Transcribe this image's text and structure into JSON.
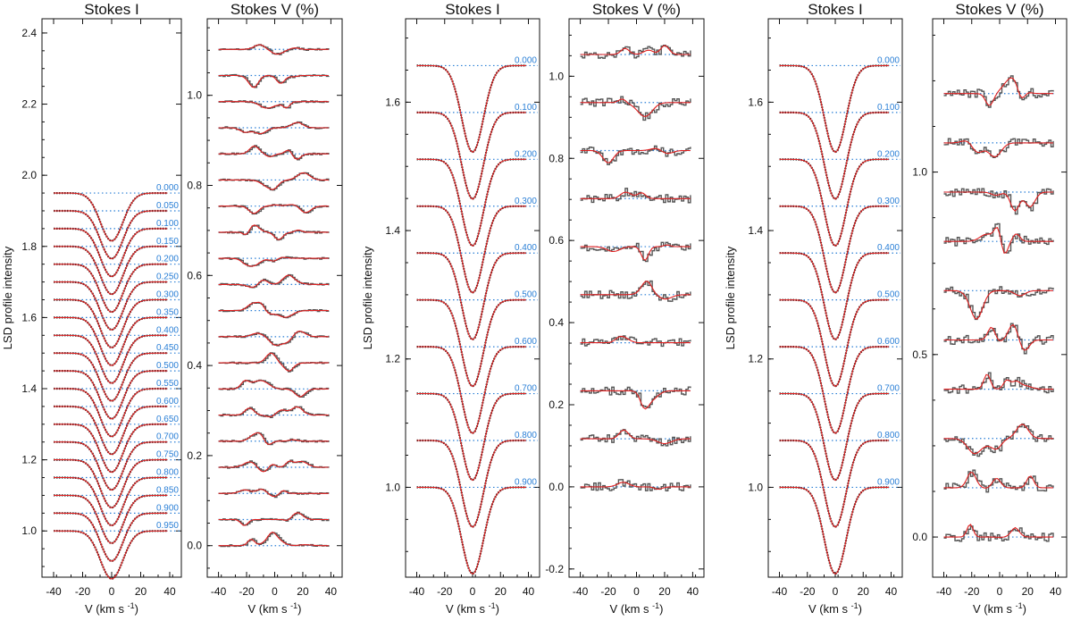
{
  "colors": {
    "observed": "#555555",
    "model": "#e02020",
    "reference": "#2a7fd6",
    "axis": "#111111"
  },
  "chart_data": [
    {
      "type": "line",
      "group": "dataset-1",
      "panels": [
        {
          "kind": "stokes_i",
          "title": "Stokes I",
          "ylabel": "LSD profile intensity",
          "xlabel": "V (km s",
          "xlabel_sup": "-1",
          "xlabel_end": ")",
          "xlim": [
            -48,
            48
          ],
          "ylim": [
            0.87,
            2.44
          ],
          "xticks": [
            -40,
            -20,
            0,
            20,
            40
          ],
          "yticks": [
            1.0,
            1.2,
            1.4,
            1.6,
            1.8,
            2.0,
            2.2,
            2.4
          ],
          "ytick_labels": [
            "1.0",
            "1.2",
            "1.4",
            "1.6",
            "1.8",
            "2.0",
            "2.2",
            "2.4"
          ],
          "offset_step": 0.05,
          "line_depth": 0.135,
          "line_width_kms": 11,
          "phases": [
            "0.000",
            "0.050",
            "0.100",
            "0.150",
            "0.200",
            "0.250",
            "0.300",
            "0.350",
            "0.400",
            "0.450",
            "0.500",
            "0.550",
            "0.600",
            "0.650",
            "0.700",
            "0.750",
            "0.800",
            "0.850",
            "0.900",
            "0.950"
          ]
        },
        {
          "kind": "stokes_v",
          "title": "Stokes V (%)",
          "xlabel": "V (km s",
          "xlabel_sup": "-1",
          "xlabel_end": ")",
          "xlim": [
            -48,
            48
          ],
          "ylim": [
            -0.07,
            1.17
          ],
          "xticks": [
            -40,
            -20,
            0,
            20,
            40
          ],
          "yticks": [
            0.0,
            0.2,
            0.4,
            0.6,
            0.8,
            1.0
          ],
          "ytick_labels": [
            "0.0",
            "0.2",
            "0.4",
            "0.6",
            "0.8",
            "1.0"
          ],
          "baseline_start": 0.0,
          "offset_step": 0.058,
          "n_profiles": 20,
          "amplitude": 0.018,
          "noise": 0.002
        }
      ]
    },
    {
      "type": "line",
      "group": "dataset-2",
      "panels": [
        {
          "kind": "stokes_i",
          "title": "Stokes I",
          "ylabel": "LSD profile intensity",
          "xlabel": "V (km s",
          "xlabel_sup": "-1",
          "xlabel_end": ")",
          "xlim": [
            -48,
            48
          ],
          "ylim": [
            0.86,
            1.73
          ],
          "xticks": [
            -40,
            -20,
            0,
            20,
            40
          ],
          "yticks": [
            1.0,
            1.2,
            1.4,
            1.6
          ],
          "ytick_labels": [
            "1.0",
            "1.2",
            "1.4",
            "1.6"
          ],
          "offset_step": 0.073,
          "line_depth": 0.135,
          "line_width_kms": 11,
          "phases": [
            "0.000",
            "0.100",
            "0.200",
            "0.300",
            "0.400",
            "0.500",
            "0.600",
            "0.700",
            "0.800",
            "0.900"
          ]
        },
        {
          "kind": "stokes_v",
          "title": "Stokes V (%)",
          "xlabel": "V (km s",
          "xlabel_sup": "-1",
          "xlabel_end": ")",
          "xlim": [
            -48,
            48
          ],
          "ylim": [
            -0.22,
            1.14
          ],
          "xticks": [
            -40,
            -20,
            0,
            20,
            40
          ],
          "yticks": [
            -0.2,
            0.0,
            0.2,
            0.4,
            0.6,
            0.8,
            1.0
          ],
          "ytick_labels": [
            "-0.2",
            "0.0",
            "0.2",
            "0.4",
            "0.6",
            "0.8",
            "1.0"
          ],
          "baseline_start": 0.0,
          "offset_step": 0.117,
          "n_profiles": 10,
          "amplitude": 0.035,
          "noise": 0.01
        }
      ]
    },
    {
      "type": "line",
      "group": "dataset-3",
      "panels": [
        {
          "kind": "stokes_i",
          "title": "Stokes I",
          "ylabel": "LSD profile intensity",
          "xlabel": "V (km s",
          "xlabel_sup": "-1",
          "xlabel_end": ")",
          "xlim": [
            -48,
            48
          ],
          "ylim": [
            0.86,
            1.73
          ],
          "xticks": [
            -40,
            -20,
            0,
            20,
            40
          ],
          "yticks": [
            1.0,
            1.2,
            1.4,
            1.6
          ],
          "ytick_labels": [
            "1.0",
            "1.2",
            "1.4",
            "1.6"
          ],
          "offset_step": 0.073,
          "line_depth": 0.135,
          "line_width_kms": 11,
          "phases": [
            "0.000",
            "0.100",
            "0.200",
            "0.300",
            "0.400",
            "0.500",
            "0.600",
            "0.700",
            "0.800",
            "0.900"
          ]
        },
        {
          "kind": "stokes_v",
          "title": "Stokes V (%)",
          "xlabel": "V (km s",
          "xlabel_sup": "-1",
          "xlabel_end": ")",
          "xlim": [
            -48,
            48
          ],
          "ylim": [
            -0.11,
            1.42
          ],
          "xticks": [
            -40,
            -20,
            0,
            20,
            40
          ],
          "yticks": [
            0.0,
            0.5,
            1.0
          ],
          "ytick_labels": [
            "0.0",
            "0.5",
            "1.0"
          ],
          "baseline_start": 0.0,
          "offset_step": 0.135,
          "n_profiles": 10,
          "amplitude": 0.045,
          "noise": 0.012
        }
      ]
    }
  ]
}
